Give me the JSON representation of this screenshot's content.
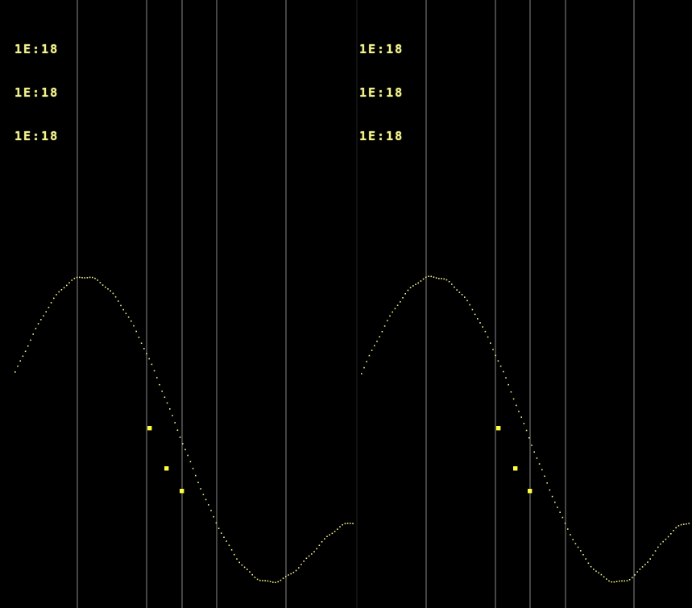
{
  "colors": {
    "background": "#000000",
    "grid_line": "#8a8a8a",
    "trace": "#f2f28a",
    "marker": "#ffff40",
    "readout": "#f2f28a"
  },
  "panels": [
    {
      "readout_lines": [
        "1E:18",
        "1E:18",
        "1E:18"
      ]
    },
    {
      "readout_lines": [
        "1E:18",
        "1E:18",
        "1E:18"
      ]
    }
  ],
  "markers": [
    "■",
    "■",
    "■"
  ]
}
